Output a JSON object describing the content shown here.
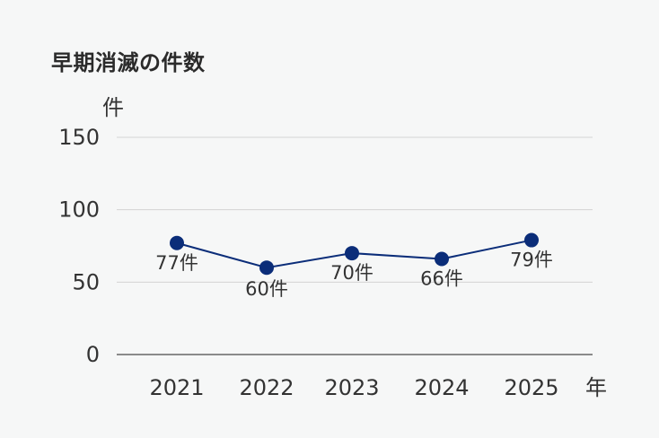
{
  "colors": {
    "background": "#f6f7f7",
    "line": "#0b2d79",
    "marker": "#0b2d79",
    "grid": "#d4d4d4",
    "axis": "#666666",
    "text": "#333333"
  },
  "chart_data": {
    "type": "line",
    "title": "早期消滅の件数",
    "xlabel": "年",
    "ylabel": "件",
    "categories": [
      "2021",
      "2022",
      "2023",
      "2024",
      "2025"
    ],
    "series": [
      {
        "values": [
          77,
          60,
          70,
          66,
          79
        ],
        "labels": [
          "77件",
          "60件",
          "70件",
          "66件",
          "79件"
        ]
      }
    ],
    "ylim": [
      0,
      150
    ],
    "yticks": [
      "0",
      "50",
      "100",
      "150"
    ],
    "grid": true,
    "legend": "none"
  }
}
